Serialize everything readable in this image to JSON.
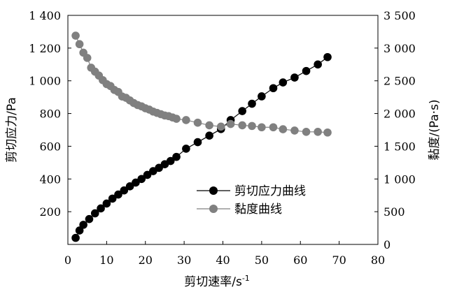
{
  "chart_data": {
    "type": "scatter",
    "title": "",
    "xlabel": "剪切速率/s",
    "xlabel_superscript": "-1",
    "ylabel_left": "剪切应力/Pa",
    "ylabel_right": "黏度/(Pa·s)",
    "xlim": [
      0,
      80
    ],
    "ylim_left": [
      0,
      1400
    ],
    "ylim_right": [
      0,
      3500
    ],
    "x_ticks": [
      0,
      10,
      20,
      30,
      40,
      50,
      60,
      70,
      80
    ],
    "x_tick_labels": [
      "0",
      "10",
      "20",
      "30",
      "40",
      "50",
      "60",
      "70",
      "80"
    ],
    "y_left_ticks": [
      200,
      400,
      600,
      800,
      1000,
      1200,
      1400
    ],
    "y_left_tick_labels": [
      "200",
      "400",
      "600",
      "800",
      "1 000",
      "1 200",
      "1 400"
    ],
    "y_right_ticks": [
      0,
      500,
      1000,
      1500,
      2000,
      2500,
      3000,
      3500
    ],
    "y_right_tick_labels": [
      "0",
      "500",
      "1 000",
      "1 500",
      "2 000",
      "2 500",
      "3 000",
      "3 500"
    ],
    "grid": false,
    "legend_position": "center-right",
    "series": [
      {
        "name": "剪切应力曲线",
        "axis": "left",
        "color": "#000000",
        "x": [
          2.0,
          3.0,
          4.0,
          5.5,
          7.0,
          8.5,
          10.0,
          11.5,
          13.0,
          14.5,
          16.0,
          17.5,
          19.0,
          20.5,
          22.0,
          23.5,
          25.0,
          26.5,
          28.0,
          30.5,
          33.5,
          36.5,
          39.5,
          42.0,
          45.0,
          47.5,
          50.0,
          53.0,
          55.5,
          58.5,
          61.5,
          64.5,
          67.0
        ],
        "y": [
          40,
          85,
          120,
          155,
          190,
          220,
          250,
          280,
          305,
          330,
          355,
          378,
          400,
          425,
          448,
          468,
          490,
          510,
          535,
          585,
          625,
          665,
          705,
          760,
          815,
          860,
          905,
          955,
          990,
          1020,
          1060,
          1100,
          1145
        ]
      },
      {
        "name": "黏度曲线",
        "axis": "right",
        "color": "#808080",
        "x": [
          2.0,
          3.0,
          4.0,
          5.0,
          6.0,
          7.0,
          8.0,
          9.0,
          10.0,
          11.0,
          12.0,
          13.0,
          14.0,
          15.0,
          16.0,
          17.0,
          18.0,
          19.0,
          20.0,
          21.0,
          22.0,
          23.0,
          24.0,
          25.0,
          26.0,
          27.0,
          28.0,
          30.5,
          33.5,
          36.5,
          39.5,
          42.0,
          45.0,
          47.5,
          50.0,
          53.0,
          55.5,
          58.5,
          61.5,
          64.5,
          67.0
        ],
        "y": [
          3190,
          3060,
          2930,
          2850,
          2700,
          2640,
          2580,
          2510,
          2450,
          2420,
          2360,
          2330,
          2260,
          2240,
          2200,
          2160,
          2130,
          2110,
          2080,
          2060,
          2030,
          2010,
          1990,
          1970,
          1960,
          1940,
          1920,
          1900,
          1860,
          1820,
          1800,
          1840,
          1820,
          1810,
          1790,
          1790,
          1760,
          1740,
          1720,
          1720,
          1710
        ]
      }
    ]
  }
}
